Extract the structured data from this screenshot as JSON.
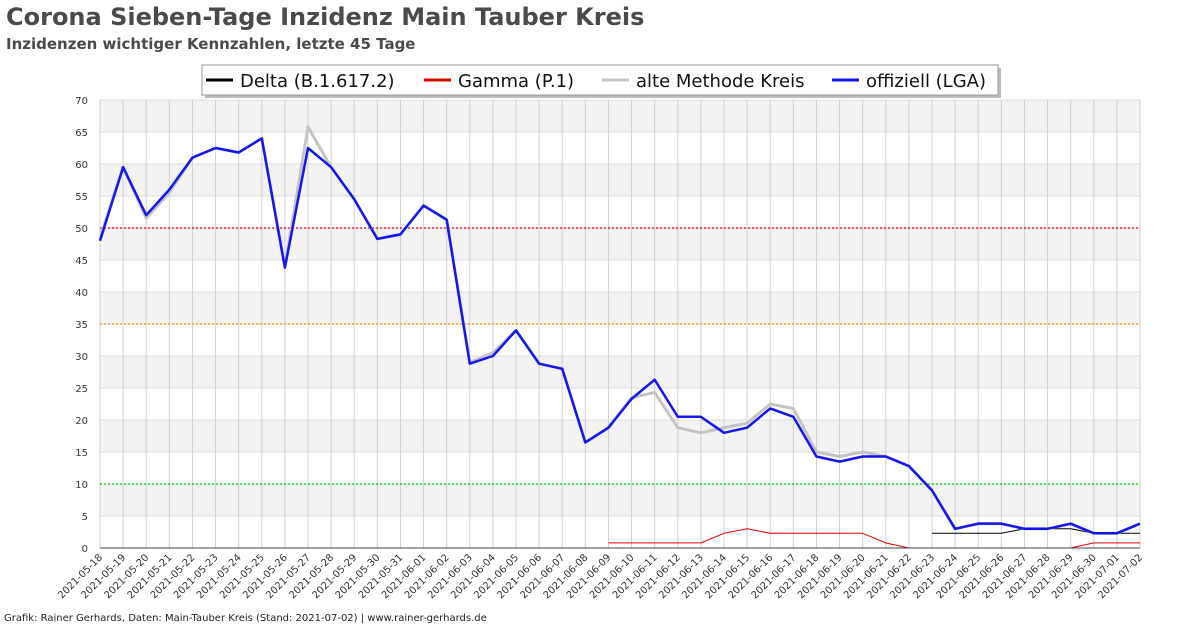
{
  "title": "Corona Sieben-Tage Inzidenz Main Tauber Kreis",
  "subtitle": "Inzidenzen wichtiger Kennzahlen, letzte 45 Tage",
  "footer": "Grafik: Rainer Gerhards, Daten: Main-Tauber Kreis (Stand: 2021-07-02) | www.rainer-gerhards.de",
  "chart_data": {
    "type": "line",
    "ylim": [
      0,
      70
    ],
    "yticks": [
      0,
      5,
      10,
      15,
      20,
      25,
      30,
      35,
      40,
      45,
      50,
      55,
      60,
      65,
      70
    ],
    "grid": true,
    "legend_position": "top-center",
    "thresholds": [
      {
        "value": 50,
        "color": "#dd0000"
      },
      {
        "value": 35,
        "color": "#e69500"
      },
      {
        "value": 10,
        "color": "#00cc00"
      }
    ],
    "x": [
      "2021-05-18",
      "2021-05-19",
      "2021-05-20",
      "2021-05-21",
      "2021-05-22",
      "2021-05-23",
      "2021-05-24",
      "2021-05-25",
      "2021-05-26",
      "2021-05-27",
      "2021-05-28",
      "2021-05-29",
      "2021-05-30",
      "2021-05-31",
      "2021-06-01",
      "2021-06-02",
      "2021-06-03",
      "2021-06-04",
      "2021-06-05",
      "2021-06-06",
      "2021-06-07",
      "2021-06-08",
      "2021-06-09",
      "2021-06-10",
      "2021-06-11",
      "2021-06-12",
      "2021-06-13",
      "2021-06-14",
      "2021-06-15",
      "2021-06-16",
      "2021-06-17",
      "2021-06-18",
      "2021-06-19",
      "2021-06-20",
      "2021-06-21",
      "2021-06-22",
      "2021-06-23",
      "2021-06-24",
      "2021-06-25",
      "2021-06-26",
      "2021-06-27",
      "2021-06-28",
      "2021-06-29",
      "2021-06-30",
      "2021-07-01",
      "2021-07-02"
    ],
    "series": [
      {
        "name": "Delta (B.1.617.2)",
        "color": "#000000",
        "width": 1,
        "values": [
          null,
          null,
          null,
          null,
          null,
          null,
          null,
          null,
          null,
          null,
          null,
          null,
          null,
          null,
          null,
          null,
          null,
          null,
          null,
          null,
          null,
          null,
          null,
          null,
          null,
          null,
          null,
          null,
          null,
          null,
          null,
          null,
          null,
          null,
          null,
          null,
          2.3,
          2.3,
          2.3,
          2.3,
          3.0,
          3.0,
          3.0,
          2.3,
          2.3,
          2.3
        ]
      },
      {
        "name": "Gamma (P.1)",
        "color": "#dd0000",
        "width": 1,
        "values": [
          null,
          null,
          null,
          null,
          null,
          null,
          null,
          null,
          null,
          null,
          null,
          null,
          null,
          null,
          null,
          null,
          null,
          null,
          null,
          null,
          null,
          null,
          0.8,
          0.8,
          0.8,
          0.8,
          0.8,
          2.3,
          3.0,
          2.3,
          2.3,
          2.3,
          2.3,
          2.3,
          0.8,
          0.0,
          null,
          null,
          null,
          null,
          null,
          null,
          0.0,
          0.8,
          0.8,
          0.8
        ]
      },
      {
        "name": "alte Methode Kreis",
        "color": "#c4c4c4",
        "width": 3,
        "values": [
          48.5,
          59.5,
          51.5,
          55.5,
          61.0,
          62.5,
          61.8,
          64.0,
          44.0,
          65.8,
          59.5,
          54.5,
          48.3,
          49.0,
          53.5,
          51.3,
          29.0,
          30.5,
          34.0,
          28.8,
          28.0,
          16.5,
          18.8,
          23.5,
          24.3,
          18.8,
          18.0,
          18.8,
          19.5,
          22.5,
          21.8,
          15.0,
          14.3,
          15.0,
          14.3,
          12.8,
          9.0,
          3.0,
          3.8,
          3.8,
          3.0,
          3.0,
          3.8,
          2.3,
          2.3,
          3.8
        ]
      },
      {
        "name": "offiziell (LGA)",
        "color": "#1515ee",
        "width": 2.5,
        "values": [
          48.0,
          59.5,
          52.0,
          56.0,
          61.0,
          62.5,
          61.8,
          64.0,
          43.8,
          62.5,
          59.5,
          54.5,
          48.3,
          49.0,
          53.5,
          51.3,
          28.8,
          30.0,
          34.0,
          28.8,
          28.0,
          16.5,
          18.8,
          23.3,
          26.3,
          20.5,
          20.5,
          18.0,
          18.8,
          21.8,
          20.5,
          14.3,
          13.5,
          14.3,
          14.3,
          12.8,
          9.0,
          3.0,
          3.8,
          3.8,
          3.0,
          3.0,
          3.8,
          2.3,
          2.3,
          3.8
        ]
      }
    ]
  }
}
